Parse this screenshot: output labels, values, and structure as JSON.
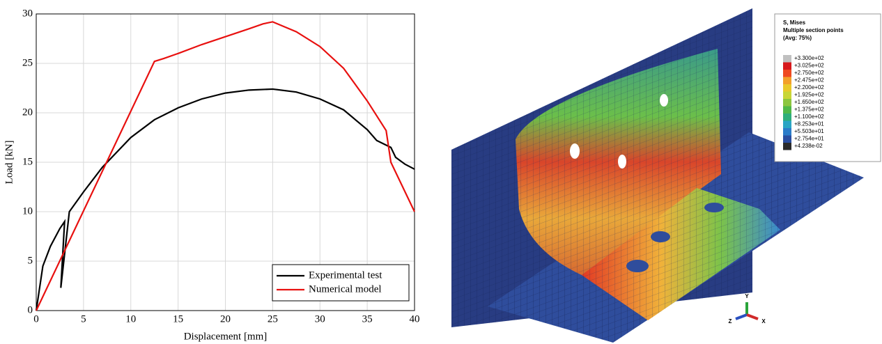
{
  "chart_data": {
    "type": "line",
    "x_label": "Displacement [mm]",
    "y_label": "Load [kN]",
    "xlim": [
      0,
      40
    ],
    "ylim": [
      0,
      30
    ],
    "xticks": [
      0,
      5,
      10,
      15,
      20,
      25,
      30,
      35,
      40
    ],
    "yticks": [
      0,
      5,
      10,
      15,
      20,
      25,
      30
    ],
    "grid": true,
    "legend_position": "lower right",
    "series": [
      {
        "name": "Experimental test",
        "color": "#000000",
        "x": [
          0,
          0.7,
          1.5,
          2.5,
          3,
          2.6,
          3.5,
          5,
          7,
          10,
          12.5,
          15,
          17.5,
          20,
          22.5,
          25,
          27.5,
          30,
          32.5,
          35,
          36,
          37.5,
          38,
          39,
          40
        ],
        "values": [
          0,
          4.5,
          6.5,
          8.3,
          9,
          2.3,
          10,
          12,
          14.5,
          17.5,
          19.3,
          20.5,
          21.4,
          22,
          22.3,
          22.4,
          22.1,
          21.4,
          20.3,
          18.3,
          17.2,
          16.5,
          15.5,
          14.8,
          14.3
        ]
      },
      {
        "name": "Numerical model",
        "color": "#e8100f",
        "x": [
          0,
          12.5,
          13.5,
          15,
          17.5,
          20,
          22.5,
          24,
          25,
          27.5,
          30,
          32.5,
          35,
          37,
          37.5,
          40
        ],
        "values": [
          0,
          25.2,
          25.5,
          26,
          26.9,
          27.7,
          28.5,
          29,
          29.2,
          28.2,
          26.7,
          24.5,
          21.2,
          18.2,
          15,
          10
        ]
      }
    ]
  },
  "contour_legend": {
    "title": [
      "S, Mises",
      "Multiple section points",
      "(Avg: 75%)"
    ],
    "levels": [
      "+3.300e+02",
      "+3.025e+02",
      "+2.750e+02",
      "+2.475e+02",
      "+2.200e+02",
      "+1.925e+02",
      "+1.650e+02",
      "+1.375e+02",
      "+1.100e+02",
      "+8.253e+01",
      "+5.503e+01",
      "+2.754e+01",
      "+4.238e-02"
    ],
    "colors": [
      "#c0c0c0",
      "#d7191c",
      "#ef4a20",
      "#f3a02a",
      "#e9c92b",
      "#c8d637",
      "#8cc63f",
      "#4fb848",
      "#2eae7a",
      "#2aa5c4",
      "#2b7cc9",
      "#2a4ea0",
      "#2b2b2b"
    ]
  },
  "triad": {
    "y": "Y",
    "z": "Z",
    "x": "X"
  }
}
